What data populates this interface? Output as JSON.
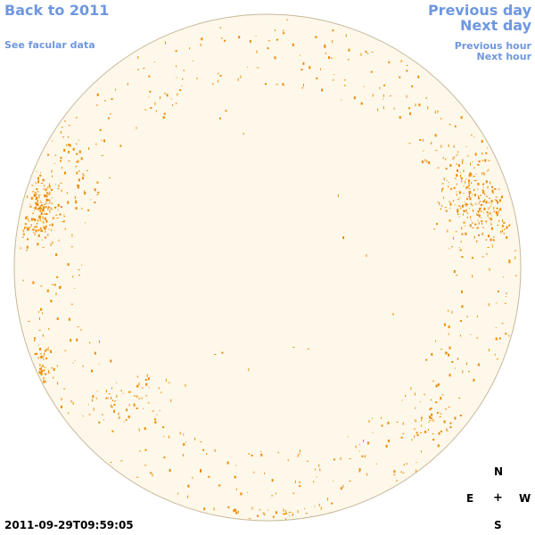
{
  "nav": {
    "back_label": "Back to 2011",
    "facular_label": "See facular data",
    "prev_day_label": "Previous day",
    "next_day_label": "Next day",
    "prev_hour_label": "Previous hour",
    "next_hour_label": "Next hour"
  },
  "timestamp": "2011-09-29T09:59:05",
  "compass": {
    "north": "N",
    "east": "E",
    "center": "+",
    "west": "W",
    "south": "S"
  },
  "colors": {
    "link": "#6f97e0",
    "disk_fill": "#fdf8ea",
    "disk_border": "#c7b89a",
    "facula": "#ef8a00"
  }
}
